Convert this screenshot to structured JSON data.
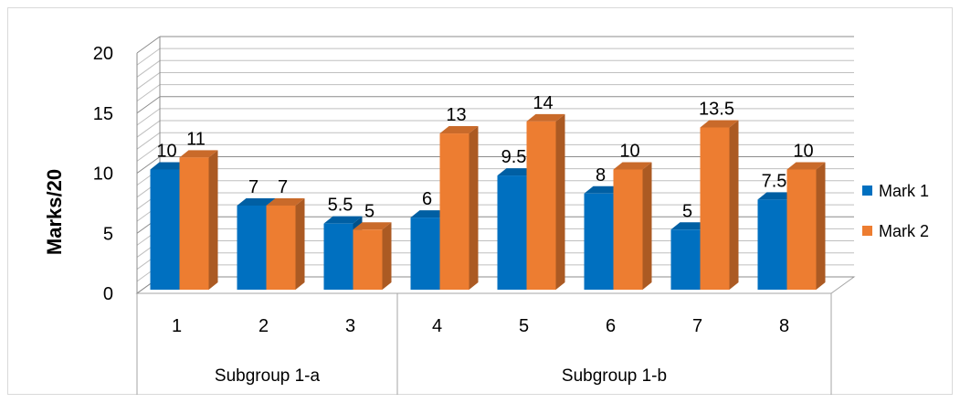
{
  "chart_data": {
    "type": "bar",
    "title": "",
    "xlabel": "",
    "ylabel": "Marks/20",
    "ylim": [
      0,
      20
    ],
    "yticks": [
      0,
      5,
      10,
      15,
      20
    ],
    "grid": true,
    "legend_position": "right",
    "categories": [
      "1",
      "2",
      "3",
      "4",
      "5",
      "6",
      "7",
      "8"
    ],
    "groups": [
      {
        "label": "Subgroup 1-a",
        "categories": [
          "1",
          "2",
          "3"
        ]
      },
      {
        "label": "Subgroup 1-b",
        "categories": [
          "4",
          "5",
          "6",
          "7",
          "8"
        ]
      }
    ],
    "series": [
      {
        "name": "Mark 1",
        "color": "#0070C0",
        "values": [
          10,
          7,
          5.5,
          6,
          9.5,
          8,
          5,
          7.5
        ]
      },
      {
        "name": "Mark 2",
        "color": "#ED7D31",
        "values": [
          11,
          7,
          5,
          13,
          14,
          10,
          13.5,
          10
        ]
      }
    ]
  }
}
